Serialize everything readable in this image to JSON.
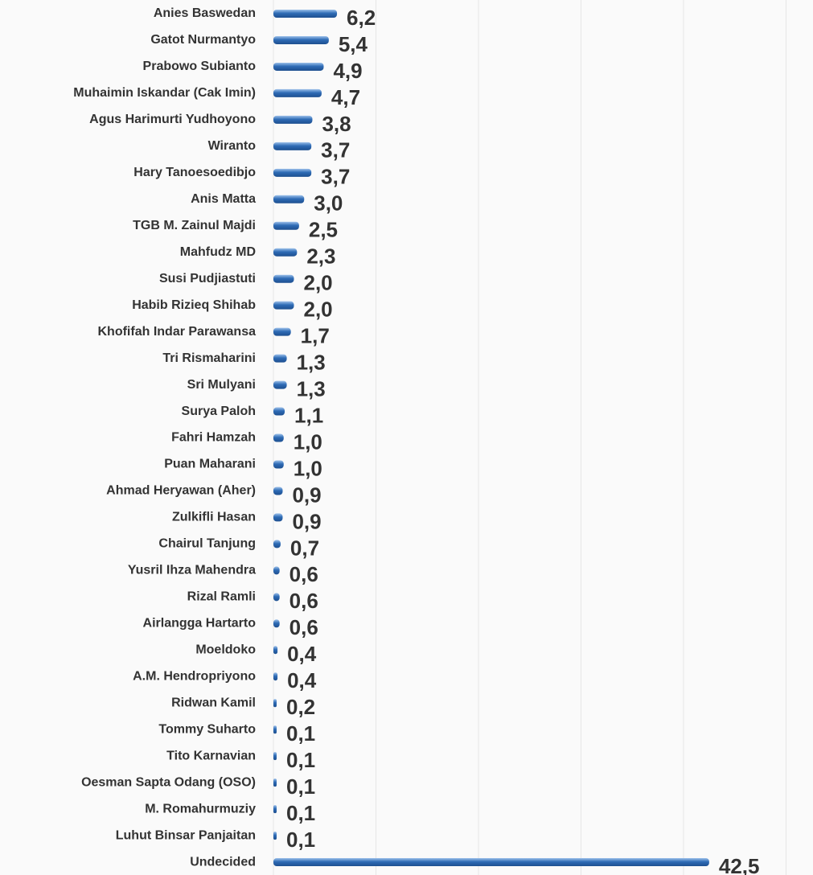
{
  "chart_data": {
    "type": "hbar",
    "categories": [
      "Anies Baswedan",
      "Gatot Nurmantyo",
      "Prabowo Subianto",
      "Muhaimin Iskandar (Cak Imin)",
      "Agus Harimurti Yudhoyono",
      "Wiranto",
      "Hary Tanoesoedibjo",
      "Anis Matta",
      "TGB M. Zainul Majdi",
      "Mahfudz MD",
      "Susi Pudjiastuti",
      "Habib Rizieq Shihab",
      "Khofifah Indar Parawansa",
      "Tri Rismaharini",
      "Sri Mulyani",
      "Surya Paloh",
      "Fahri Hamzah",
      "Puan Maharani",
      "Ahmad Heryawan (Aher)",
      "Zulkifli Hasan",
      "Chairul Tanjung",
      "Yusril Ihza Mahendra",
      "Rizal Ramli",
      "Airlangga Hartarto",
      "Moeldoko",
      "A.M. Hendropriyono",
      "Ridwan Kamil",
      "Tommy Suharto",
      "Tito Karnavian",
      "Oesman Sapta Odang (OSO)",
      "M. Romahurmuziy",
      "Luhut Binsar Panjaitan",
      "Undecided"
    ],
    "values": [
      6.2,
      5.4,
      4.9,
      4.7,
      3.8,
      3.7,
      3.7,
      3.0,
      2.5,
      2.3,
      2.0,
      2.0,
      1.7,
      1.3,
      1.3,
      1.1,
      1.0,
      1.0,
      0.9,
      0.9,
      0.7,
      0.6,
      0.6,
      0.6,
      0.4,
      0.4,
      0.2,
      0.1,
      0.1,
      0.1,
      0.1,
      0.1,
      42.5
    ],
    "value_labels": [
      "6,2",
      "5,4",
      "4,9",
      "4,7",
      "3,8",
      "3,7",
      "3,7",
      "3,0",
      "2,5",
      "2,3",
      "2,0",
      "2,0",
      "1,7",
      "1,3",
      "1,3",
      "1,1",
      "1,0",
      "1,0",
      "0,9",
      "0,9",
      "0,7",
      "0,6",
      "0,6",
      "0,6",
      "0,4",
      "0,4",
      "0,2",
      "0,1",
      "0,1",
      "0,1",
      "0,1",
      "0,1",
      "42,5"
    ],
    "color": "#2e6bb5",
    "xlim": [
      0,
      52.5
    ],
    "xticks": [
      0,
      10,
      20,
      30,
      40,
      50
    ],
    "grid": true
  }
}
